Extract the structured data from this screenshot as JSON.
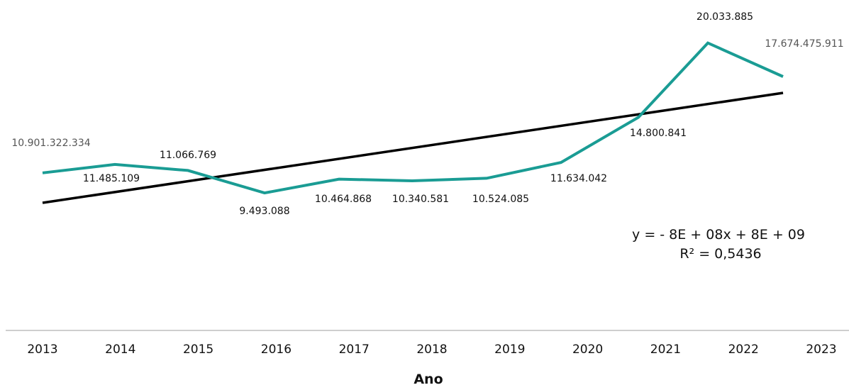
{
  "chart_data": {
    "type": "line",
    "x": [
      "2013",
      "2014",
      "2015",
      "2016",
      "2017",
      "2018",
      "2019",
      "2020",
      "2021",
      "2022",
      "2023"
    ],
    "series": [
      {
        "values": [
          10901322334,
          11485109,
          11066769,
          9493088,
          10464868,
          10340581,
          10524085,
          11634042,
          14800841,
          20033885,
          17674475911
        ],
        "data_labels": [
          "10.901.322.334",
          "11.485.109",
          "11.066.769",
          "9.493.088",
          "10.464.868",
          "10.340.581",
          "10.524.085",
          "11.634.042",
          "14.800.841",
          "20.033.885",
          "17.674.475.911"
        ],
        "color": "#1a9c94"
      }
    ],
    "trendline": {
      "type": "linear",
      "color": "#000000",
      "equation": "y = - 8E + 08x + 8E + 09",
      "r_squared": "R² = 0,5436"
    },
    "xlabel": "Ano",
    "ylabel": "",
    "title": "",
    "grid": false,
    "legend": "none"
  }
}
